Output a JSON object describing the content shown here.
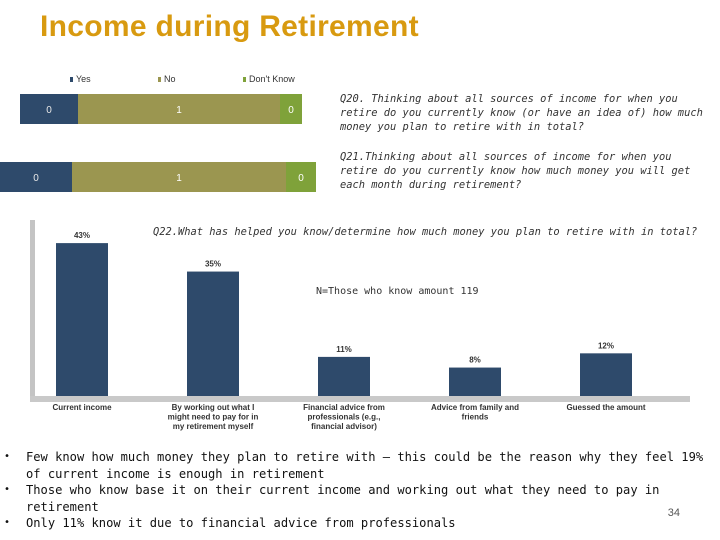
{
  "slide": {
    "title": "Income during Retirement",
    "page_number": "34"
  },
  "legend": [
    {
      "label": "Yes",
      "color": "#2e4a6b"
    },
    {
      "label": "No",
      "color": "#9b9650"
    },
    {
      "label": "Don't Know",
      "color": "#7fa23a"
    }
  ],
  "questions": {
    "q20": "Q20.  Thinking about all sources of income for when you retire do you currently know (or have an idea of) how much money you plan to retire with in total?",
    "q21": "Q21.Thinking about all sources of income for when you retire do you currently know how much money you will get each month during retirement?",
    "q22": "Q22.What has helped you know/determine how much money you plan to retire with in total?"
  },
  "n_label": "N=Those who know amount 119",
  "bullets": [
    "Few know how much money they plan to retire with – this could be the reason why they feel 19% of current income is enough in retirement",
    "Those who know  base it on their current income  and working out what they need to pay in retirement",
    "Only 11% know it due to financial advice from professionals"
  ],
  "chart_data": [
    {
      "type": "bar",
      "orientation": "horizontal",
      "stacked": true,
      "categories": [
        "Q20",
        "Q21"
      ],
      "series": [
        {
          "name": "Yes",
          "values": [
            0,
            0
          ],
          "labels": [
            "0",
            "0"
          ],
          "color": "#2e4a6b"
        },
        {
          "name": "No",
          "values": [
            1,
            1
          ],
          "labels": [
            "1",
            "1"
          ],
          "color": "#9b9650"
        },
        {
          "name": "Don't Know",
          "values": [
            0,
            0
          ],
          "labels": [
            "0",
            "0"
          ],
          "color": "#7fa23a"
        }
      ],
      "legend": "top"
    },
    {
      "type": "bar",
      "categories": [
        "Current income",
        "By working out what I might need to pay for in my retirement myself",
        "Financial advice from professionals (e.g., financial advisor)",
        "Advice from family and friends",
        "Guessed the amount"
      ],
      "values": [
        43,
        35,
        11,
        8,
        12
      ],
      "value_labels": [
        "43%",
        "35%",
        "11%",
        "8%",
        "12%"
      ],
      "ylim": [
        0,
        45
      ],
      "color": "#2e4a6b",
      "grid": false
    }
  ]
}
